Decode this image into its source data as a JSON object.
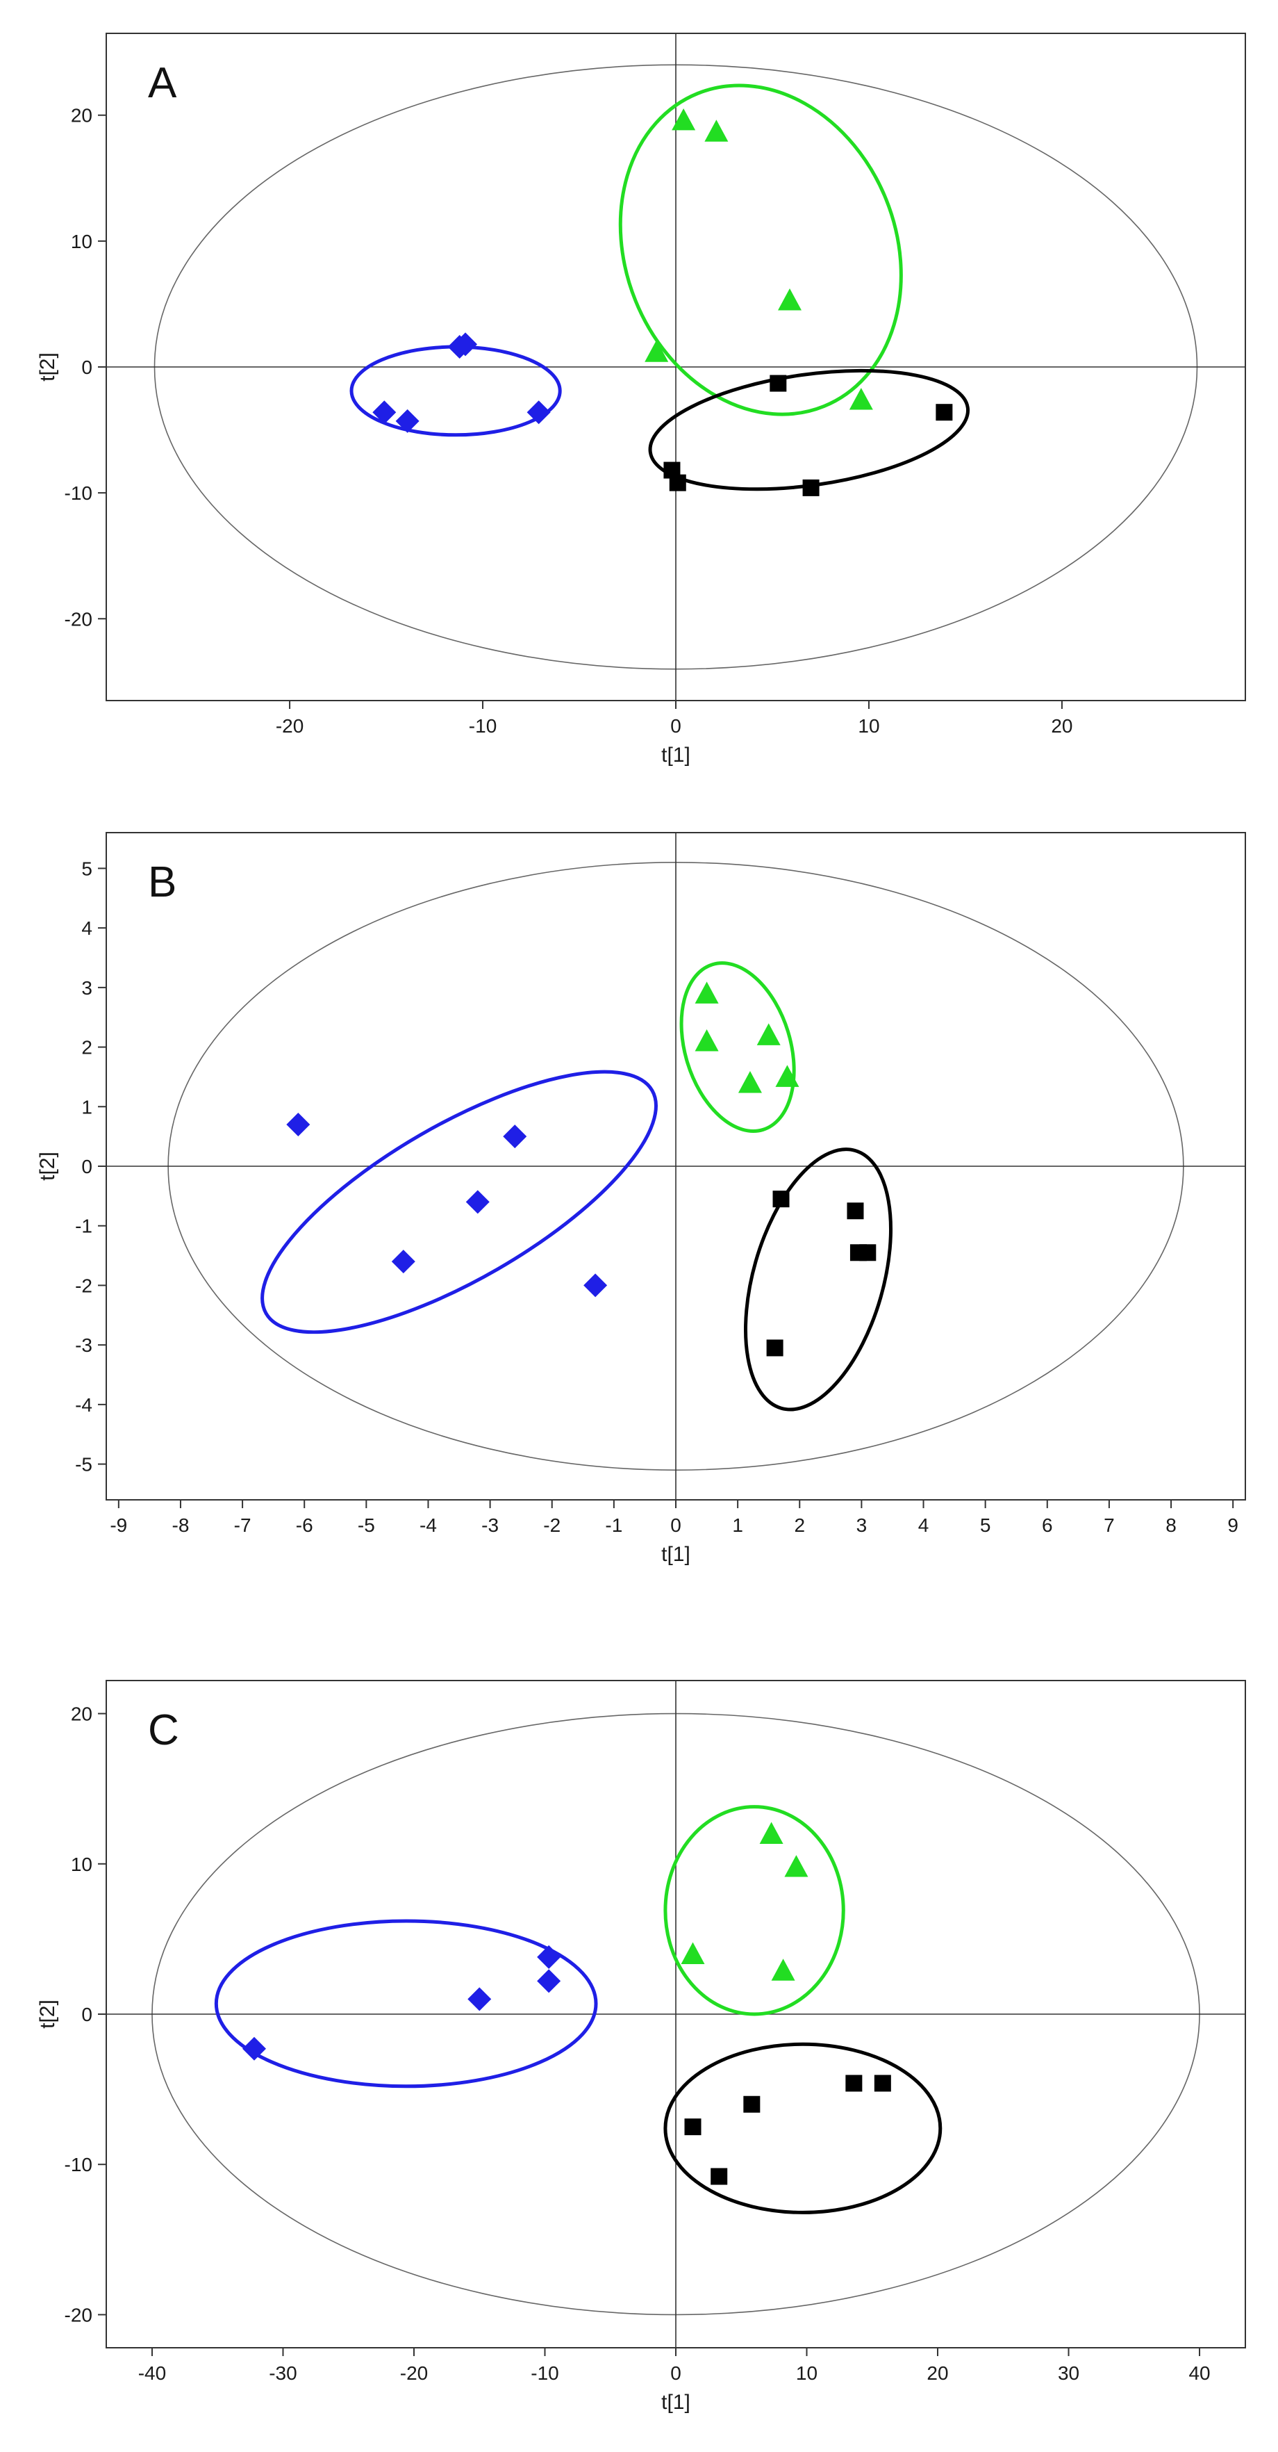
{
  "chart_data": [
    {
      "type": "scatter",
      "panel_label": "A",
      "xlabel": "t[1]",
      "ylabel": "t[2]",
      "xlim": [
        -29.5,
        29.5
      ],
      "ylim": [
        -26.5,
        26.5
      ],
      "xticks": [
        -20,
        -10,
        0,
        10,
        20
      ],
      "yticks": [
        -20,
        -10,
        0,
        10,
        20
      ],
      "hotelling_ellipse": {
        "cx": 0,
        "cy": 0,
        "rx": 27,
        "ry": 24
      },
      "groups": [
        {
          "marker": "diamond",
          "color": "#1f1fe6",
          "points": [
            [
              -11.2,
              1.6
            ],
            [
              -10.9,
              1.8
            ],
            [
              -15.1,
              -3.6
            ],
            [
              -13.9,
              -4.3
            ],
            [
              -7.1,
              -3.6
            ]
          ],
          "ellipse": {
            "cx": -11.4,
            "cy": -1.9,
            "rx": 5.4,
            "ry": 3.5,
            "angle": 0
          }
        },
        {
          "marker": "triangle",
          "color": "#22dd22",
          "points": [
            [
              0.4,
              19.6
            ],
            [
              2.1,
              18.7
            ],
            [
              5.9,
              5.3
            ],
            [
              -1.0,
              1.2
            ],
            [
              9.6,
              -2.6
            ]
          ],
          "ellipse": {
            "cx": 4.4,
            "cy": 9.3,
            "rx": 7.0,
            "ry": 13.4,
            "angle": -22
          }
        },
        {
          "marker": "square",
          "color": "#000000",
          "points": [
            [
              5.3,
              -1.3
            ],
            [
              13.9,
              -3.6
            ],
            [
              -0.2,
              -8.2
            ],
            [
              0.1,
              -9.2
            ],
            [
              7.0,
              -9.6
            ]
          ],
          "ellipse": {
            "cx": 6.9,
            "cy": -5.0,
            "rx": 8.3,
            "ry": 4.4,
            "angle": -8
          }
        }
      ]
    },
    {
      "type": "scatter",
      "panel_label": "B",
      "xlabel": "t[1]",
      "ylabel": "t[2]",
      "xlim": [
        -9.2,
        9.2
      ],
      "ylim": [
        -5.6,
        5.6
      ],
      "xticks": [
        -9,
        -8,
        -7,
        -6,
        -5,
        -4,
        -3,
        -2,
        -1,
        0,
        1,
        2,
        3,
        4,
        5,
        6,
        7,
        8,
        9
      ],
      "yticks": [
        -5,
        -4,
        -3,
        -2,
        -1,
        0,
        1,
        2,
        3,
        4,
        5
      ],
      "hotelling_ellipse": {
        "cx": 0,
        "cy": 0,
        "rx": 8.2,
        "ry": 5.1
      },
      "groups": [
        {
          "marker": "diamond",
          "color": "#1f1fe6",
          "points": [
            [
              -6.1,
              0.7
            ],
            [
              -2.6,
              0.5
            ],
            [
              -3.2,
              -0.6
            ],
            [
              -4.4,
              -1.6
            ],
            [
              -1.3,
              -2.0
            ]
          ],
          "ellipse": {
            "cx": -3.5,
            "cy": -0.6,
            "rx": 3.6,
            "ry": 1.3,
            "angle": -30
          }
        },
        {
          "marker": "triangle",
          "color": "#22dd22",
          "points": [
            [
              0.5,
              2.9
            ],
            [
              0.5,
              2.1
            ],
            [
              1.5,
              2.2
            ],
            [
              1.2,
              1.4
            ],
            [
              1.8,
              1.5
            ]
          ],
          "ellipse": {
            "cx": 1.0,
            "cy": 2.0,
            "rx": 0.85,
            "ry": 1.45,
            "angle": -17
          }
        },
        {
          "marker": "square",
          "color": "#000000",
          "points": [
            [
              1.7,
              -0.55
            ],
            [
              2.9,
              -0.75
            ],
            [
              2.95,
              -1.45
            ],
            [
              3.1,
              -1.45
            ],
            [
              1.6,
              -3.05
            ]
          ],
          "ellipse": {
            "cx": 2.3,
            "cy": -1.9,
            "rx": 1.05,
            "ry": 2.25,
            "angle": 16
          }
        }
      ]
    },
    {
      "type": "scatter",
      "panel_label": "C",
      "xlabel": "t[1]",
      "ylabel": "t[2]",
      "xlim": [
        -43.5,
        43.5
      ],
      "ylim": [
        -22.2,
        22.2
      ],
      "xticks": [
        -40,
        -30,
        -20,
        -10,
        0,
        10,
        20,
        30,
        40
      ],
      "yticks": [
        -20,
        -10,
        0,
        10,
        20
      ],
      "hotelling_ellipse": {
        "cx": 0,
        "cy": 0,
        "rx": 40,
        "ry": 20
      },
      "groups": [
        {
          "marker": "diamond",
          "color": "#1f1fe6",
          "points": [
            [
              -32.2,
              -2.3
            ],
            [
              -15.0,
              1.0
            ],
            [
              -9.7,
              3.8
            ],
            [
              -9.7,
              2.2
            ]
          ],
          "ellipse": {
            "cx": -20.6,
            "cy": 0.7,
            "rx": 14.5,
            "ry": 5.5,
            "angle": 0
          }
        },
        {
          "marker": "triangle",
          "color": "#22dd22",
          "points": [
            [
              7.3,
              12.0
            ],
            [
              9.2,
              9.8
            ],
            [
              1.3,
              4.0
            ],
            [
              8.2,
              2.9
            ]
          ],
          "ellipse": {
            "cx": 6.0,
            "cy": 6.9,
            "rx": 6.8,
            "ry": 6.9,
            "angle": 0
          }
        },
        {
          "marker": "square",
          "color": "#000000",
          "points": [
            [
              5.8,
              -6.0
            ],
            [
              13.6,
              -4.6
            ],
            [
              15.8,
              -4.6
            ],
            [
              1.3,
              -7.5
            ],
            [
              3.3,
              -10.8
            ]
          ],
          "ellipse": {
            "cx": 9.7,
            "cy": -7.6,
            "rx": 10.5,
            "ry": 5.6,
            "angle": 0
          }
        }
      ]
    }
  ]
}
